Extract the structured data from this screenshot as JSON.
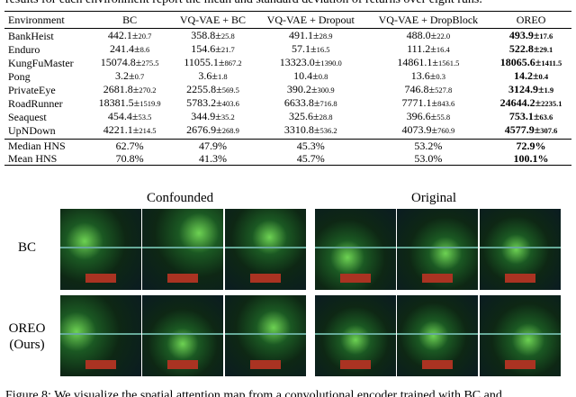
{
  "top_caption": "results for each environment report the mean and standard deviation of returns over eight runs.",
  "table": {
    "header": [
      "Environment",
      "BC",
      "VQ-VAE + BC",
      "VQ-VAE + Dropout",
      "VQ-VAE + DropBlock",
      "OREO"
    ],
    "rows": [
      [
        "BankHeist",
        {
          "main": "442.1±",
          "std": "20.7"
        },
        {
          "main": "358.8±",
          "std": "25.8"
        },
        {
          "main": "491.1±",
          "std": "28.9"
        },
        {
          "main": "488.0±",
          "std": "22.0"
        },
        {
          "main": "493.9±",
          "std": "17.6"
        }
      ],
      [
        "Enduro",
        {
          "main": "241.4±",
          "std": "8.6"
        },
        {
          "main": "154.6±",
          "std": "21.7"
        },
        {
          "main": "57.1±",
          "std": "16.5"
        },
        {
          "main": "111.2±",
          "std": "16.4"
        },
        {
          "main": "522.8±",
          "std": "29.1"
        }
      ],
      [
        "KungFuMaster",
        {
          "main": "15074.8±",
          "std": "275.5"
        },
        {
          "main": "11055.1±",
          "std": "867.2"
        },
        {
          "main": "13323.0±",
          "std": "1390.0"
        },
        {
          "main": "14861.1±",
          "std": "1561.5"
        },
        {
          "main": "18065.6±",
          "std": "1411.5"
        }
      ],
      [
        "Pong",
        {
          "main": "3.2±",
          "std": "0.7"
        },
        {
          "main": "3.6±",
          "std": "1.8"
        },
        {
          "main": "10.4±",
          "std": "0.8"
        },
        {
          "main": "13.6±",
          "std": "0.3"
        },
        {
          "main": "14.2±",
          "std": "0.4"
        }
      ],
      [
        "PrivateEye",
        {
          "main": "2681.8±",
          "std": "270.2"
        },
        {
          "main": "2255.8±",
          "std": "569.5"
        },
        {
          "main": "390.2±",
          "std": "300.9"
        },
        {
          "main": "746.8±",
          "std": "527.8"
        },
        {
          "main": "3124.9±",
          "std": "1.9"
        }
      ],
      [
        "RoadRunner",
        {
          "main": "18381.5±",
          "std": "1519.9"
        },
        {
          "main": "5783.2±",
          "std": "403.6"
        },
        {
          "main": "6633.8±",
          "std": "716.8"
        },
        {
          "main": "7771.1±",
          "std": "843.6"
        },
        {
          "main": "24644.2±",
          "std": "2235.1"
        }
      ],
      [
        "Seaquest",
        {
          "main": "454.4±",
          "std": "53.5"
        },
        {
          "main": "344.9±",
          "std": "35.2"
        },
        {
          "main": "325.6±",
          "std": "28.8"
        },
        {
          "main": "396.6±",
          "std": "55.8"
        },
        {
          "main": "753.1±",
          "std": "63.6"
        }
      ],
      [
        "UpNDown",
        {
          "main": "4221.1±",
          "std": "214.5"
        },
        {
          "main": "2676.9±",
          "std": "268.9"
        },
        {
          "main": "3310.8±",
          "std": "536.2"
        },
        {
          "main": "4073.9±",
          "std": "760.9"
        },
        {
          "main": "4577.9±",
          "std": "307.6"
        }
      ]
    ],
    "summary_rows": [
      [
        "Median HNS",
        "62.7%",
        "47.9%",
        "45.3%",
        "53.2%",
        "72.9%"
      ],
      [
        "Mean HNS",
        "70.8%",
        "41.3%",
        "45.7%",
        "53.0%",
        "100.1%"
      ]
    ]
  },
  "figure": {
    "column_labels": [
      "Confounded",
      "Original"
    ],
    "row_labels": [
      [
        "BC"
      ],
      [
        "OREO",
        "(Ours)"
      ]
    ],
    "caption": "Figure 8: We visualize the spatial attention map from a convolutional encoder trained with BC and"
  }
}
